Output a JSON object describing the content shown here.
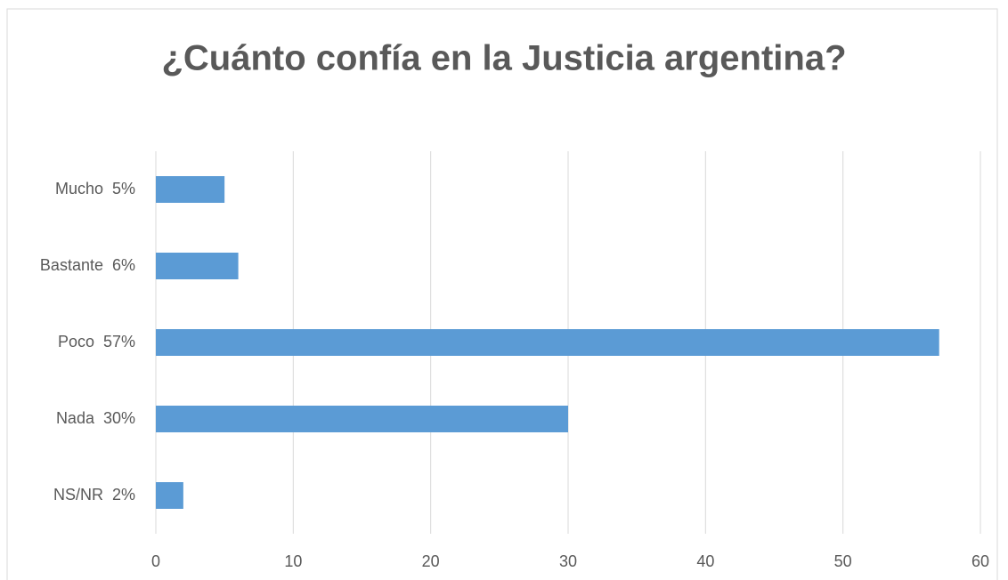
{
  "chart_data": {
    "type": "bar",
    "orientation": "horizontal",
    "title": "¿Cuánto confía en la Justicia argentina?",
    "categories": [
      "Mucho  5%",
      "Bastante  6%",
      "Poco  57%",
      "Nada  30%",
      "NS/NR  2%"
    ],
    "values": [
      5,
      6,
      57,
      30,
      2
    ],
    "color": "#5b9bd5",
    "xlim": [
      0,
      60
    ],
    "xticks": [
      0,
      10,
      20,
      30,
      40,
      50,
      60
    ],
    "grid": true
  }
}
